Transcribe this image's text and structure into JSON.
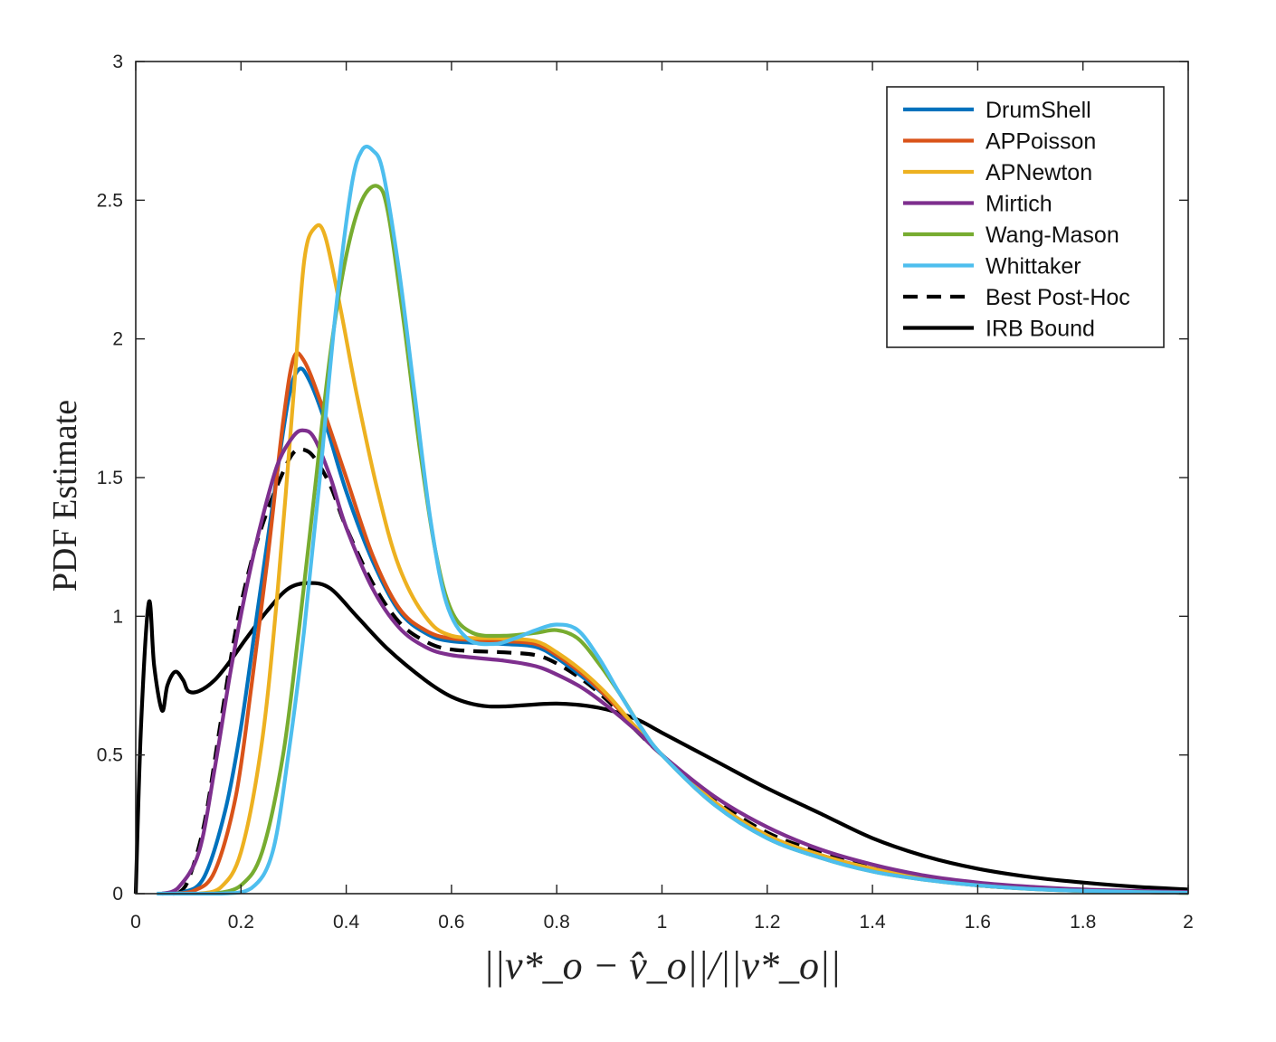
{
  "chart_data": {
    "type": "line",
    "title": "",
    "xlabel": "||v*_o − v̂_o||/||v*_o||",
    "ylabel": "PDF Estimate",
    "xlim": [
      0,
      2
    ],
    "ylim": [
      0,
      3
    ],
    "x_ticks": [
      0,
      0.2,
      0.4,
      0.6,
      0.8,
      1,
      1.2,
      1.4,
      1.6,
      1.8,
      2
    ],
    "x_tick_labels": [
      "0",
      "0.2",
      "0.4",
      "0.6",
      "0.8",
      "1",
      "1.2",
      "1.4",
      "1.6",
      "1.8",
      "2"
    ],
    "y_ticks": [
      0,
      0.5,
      1,
      1.5,
      2,
      2.5,
      3
    ],
    "y_tick_labels": [
      "0",
      "0.5",
      "1",
      "1.5",
      "2",
      "2.5",
      "3"
    ],
    "grid": false,
    "legend_position": "top-right",
    "series": [
      {
        "name": "DrumShell",
        "color": "#0072BD",
        "dash": "solid",
        "points": [
          [
            0.05,
            0
          ],
          [
            0.09,
            0.005
          ],
          [
            0.13,
            0.06
          ],
          [
            0.17,
            0.3
          ],
          [
            0.2,
            0.6
          ],
          [
            0.23,
            1.0
          ],
          [
            0.26,
            1.4
          ],
          [
            0.29,
            1.78
          ],
          [
            0.31,
            1.89
          ],
          [
            0.33,
            1.85
          ],
          [
            0.36,
            1.7
          ],
          [
            0.4,
            1.45
          ],
          [
            0.45,
            1.2
          ],
          [
            0.5,
            1.02
          ],
          [
            0.55,
            0.94
          ],
          [
            0.6,
            0.91
          ],
          [
            0.7,
            0.9
          ],
          [
            0.76,
            0.89
          ],
          [
            0.8,
            0.85
          ],
          [
            0.85,
            0.78
          ],
          [
            0.9,
            0.7
          ],
          [
            0.95,
            0.6
          ],
          [
            1.0,
            0.5
          ],
          [
            1.1,
            0.33
          ],
          [
            1.2,
            0.21
          ],
          [
            1.3,
            0.14
          ],
          [
            1.4,
            0.09
          ],
          [
            1.5,
            0.055
          ],
          [
            1.6,
            0.03
          ],
          [
            1.7,
            0.018
          ],
          [
            1.8,
            0.01
          ],
          [
            1.9,
            0.006
          ],
          [
            2.0,
            0.003
          ]
        ]
      },
      {
        "name": "APPoisson",
        "color": "#D95319",
        "dash": "solid",
        "points": [
          [
            0.07,
            0
          ],
          [
            0.11,
            0.01
          ],
          [
            0.15,
            0.08
          ],
          [
            0.19,
            0.35
          ],
          [
            0.22,
            0.75
          ],
          [
            0.25,
            1.2
          ],
          [
            0.28,
            1.7
          ],
          [
            0.3,
            1.93
          ],
          [
            0.32,
            1.92
          ],
          [
            0.35,
            1.78
          ],
          [
            0.4,
            1.5
          ],
          [
            0.45,
            1.22
          ],
          [
            0.5,
            1.03
          ],
          [
            0.55,
            0.95
          ],
          [
            0.6,
            0.92
          ],
          [
            0.7,
            0.91
          ],
          [
            0.76,
            0.9
          ],
          [
            0.8,
            0.86
          ],
          [
            0.85,
            0.79
          ],
          [
            0.9,
            0.7
          ],
          [
            0.95,
            0.6
          ],
          [
            1.0,
            0.5
          ],
          [
            1.1,
            0.33
          ],
          [
            1.2,
            0.21
          ],
          [
            1.3,
            0.14
          ],
          [
            1.4,
            0.09
          ],
          [
            1.5,
            0.055
          ],
          [
            1.6,
            0.03
          ],
          [
            1.7,
            0.018
          ],
          [
            1.8,
            0.01
          ],
          [
            1.9,
            0.006
          ],
          [
            2.0,
            0.003
          ]
        ]
      },
      {
        "name": "APNewton",
        "color": "#EDB120",
        "dash": "solid",
        "points": [
          [
            0.12,
            0
          ],
          [
            0.16,
            0.02
          ],
          [
            0.2,
            0.15
          ],
          [
            0.24,
            0.55
          ],
          [
            0.27,
            1.1
          ],
          [
            0.3,
            1.8
          ],
          [
            0.32,
            2.28
          ],
          [
            0.34,
            2.4
          ],
          [
            0.36,
            2.37
          ],
          [
            0.39,
            2.1
          ],
          [
            0.42,
            1.8
          ],
          [
            0.46,
            1.45
          ],
          [
            0.5,
            1.18
          ],
          [
            0.55,
            1.0
          ],
          [
            0.6,
            0.93
          ],
          [
            0.7,
            0.92
          ],
          [
            0.76,
            0.91
          ],
          [
            0.8,
            0.87
          ],
          [
            0.85,
            0.8
          ],
          [
            0.9,
            0.71
          ],
          [
            0.95,
            0.6
          ],
          [
            1.0,
            0.5
          ],
          [
            1.1,
            0.33
          ],
          [
            1.2,
            0.21
          ],
          [
            1.3,
            0.14
          ],
          [
            1.4,
            0.09
          ],
          [
            1.5,
            0.055
          ],
          [
            1.6,
            0.03
          ],
          [
            1.7,
            0.018
          ],
          [
            1.8,
            0.01
          ],
          [
            1.9,
            0.006
          ],
          [
            2.0,
            0.003
          ]
        ]
      },
      {
        "name": "Mirtich",
        "color": "#7E2F8E",
        "dash": "solid",
        "points": [
          [
            0.05,
            0
          ],
          [
            0.08,
            0.02
          ],
          [
            0.12,
            0.15
          ],
          [
            0.15,
            0.45
          ],
          [
            0.18,
            0.8
          ],
          [
            0.21,
            1.1
          ],
          [
            0.24,
            1.35
          ],
          [
            0.27,
            1.55
          ],
          [
            0.3,
            1.65
          ],
          [
            0.32,
            1.67
          ],
          [
            0.34,
            1.64
          ],
          [
            0.37,
            1.5
          ],
          [
            0.4,
            1.32
          ],
          [
            0.45,
            1.1
          ],
          [
            0.5,
            0.96
          ],
          [
            0.55,
            0.89
          ],
          [
            0.6,
            0.86
          ],
          [
            0.7,
            0.84
          ],
          [
            0.76,
            0.82
          ],
          [
            0.8,
            0.79
          ],
          [
            0.85,
            0.74
          ],
          [
            0.9,
            0.67
          ],
          [
            0.95,
            0.59
          ],
          [
            1.0,
            0.5
          ],
          [
            1.1,
            0.35
          ],
          [
            1.2,
            0.24
          ],
          [
            1.3,
            0.16
          ],
          [
            1.4,
            0.105
          ],
          [
            1.5,
            0.065
          ],
          [
            1.6,
            0.04
          ],
          [
            1.7,
            0.025
          ],
          [
            1.8,
            0.015
          ],
          [
            1.9,
            0.01
          ],
          [
            2.0,
            0.006
          ]
        ]
      },
      {
        "name": "Wang-Mason",
        "color": "#77AC30",
        "dash": "solid",
        "points": [
          [
            0.15,
            0
          ],
          [
            0.2,
            0.03
          ],
          [
            0.24,
            0.15
          ],
          [
            0.28,
            0.5
          ],
          [
            0.31,
            0.95
          ],
          [
            0.34,
            1.45
          ],
          [
            0.37,
            1.95
          ],
          [
            0.4,
            2.3
          ],
          [
            0.43,
            2.5
          ],
          [
            0.46,
            2.55
          ],
          [
            0.48,
            2.45
          ],
          [
            0.51,
            2.05
          ],
          [
            0.54,
            1.6
          ],
          [
            0.57,
            1.23
          ],
          [
            0.6,
            1.02
          ],
          [
            0.64,
            0.94
          ],
          [
            0.7,
            0.93
          ],
          [
            0.76,
            0.94
          ],
          [
            0.8,
            0.95
          ],
          [
            0.84,
            0.92
          ],
          [
            0.88,
            0.83
          ],
          [
            0.92,
            0.72
          ],
          [
            0.96,
            0.6
          ],
          [
            1.0,
            0.5
          ],
          [
            1.1,
            0.32
          ],
          [
            1.2,
            0.2
          ],
          [
            1.3,
            0.13
          ],
          [
            1.4,
            0.08
          ],
          [
            1.5,
            0.05
          ],
          [
            1.6,
            0.03
          ],
          [
            1.7,
            0.017
          ],
          [
            1.8,
            0.01
          ],
          [
            1.9,
            0.006
          ],
          [
            2.0,
            0.003
          ]
        ]
      },
      {
        "name": "Whittaker",
        "color": "#4DBEEE",
        "dash": "solid",
        "points": [
          [
            0.04,
            0
          ],
          [
            0.16,
            0
          ],
          [
            0.22,
            0.02
          ],
          [
            0.26,
            0.15
          ],
          [
            0.29,
            0.5
          ],
          [
            0.32,
            0.95
          ],
          [
            0.35,
            1.5
          ],
          [
            0.38,
            2.1
          ],
          [
            0.41,
            2.55
          ],
          [
            0.43,
            2.68
          ],
          [
            0.45,
            2.68
          ],
          [
            0.47,
            2.6
          ],
          [
            0.5,
            2.25
          ],
          [
            0.53,
            1.8
          ],
          [
            0.56,
            1.35
          ],
          [
            0.59,
            1.05
          ],
          [
            0.63,
            0.92
          ],
          [
            0.68,
            0.9
          ],
          [
            0.72,
            0.92
          ],
          [
            0.76,
            0.95
          ],
          [
            0.8,
            0.97
          ],
          [
            0.84,
            0.95
          ],
          [
            0.88,
            0.85
          ],
          [
            0.92,
            0.72
          ],
          [
            0.96,
            0.6
          ],
          [
            1.0,
            0.5
          ],
          [
            1.1,
            0.32
          ],
          [
            1.2,
            0.2
          ],
          [
            1.3,
            0.13
          ],
          [
            1.4,
            0.08
          ],
          [
            1.5,
            0.05
          ],
          [
            1.6,
            0.03
          ],
          [
            1.7,
            0.017
          ],
          [
            1.8,
            0.01
          ],
          [
            1.9,
            0.006
          ],
          [
            2.0,
            0.003
          ]
        ]
      },
      {
        "name": "Best Post-Hoc",
        "color": "#000000",
        "dash": "dashed",
        "points": [
          [
            0.08,
            0
          ],
          [
            0.1,
            0.05
          ],
          [
            0.13,
            0.25
          ],
          [
            0.16,
            0.6
          ],
          [
            0.19,
            0.95
          ],
          [
            0.22,
            1.2
          ],
          [
            0.25,
            1.38
          ],
          [
            0.28,
            1.52
          ],
          [
            0.3,
            1.59
          ],
          [
            0.32,
            1.6
          ],
          [
            0.34,
            1.57
          ],
          [
            0.37,
            1.47
          ],
          [
            0.4,
            1.32
          ],
          [
            0.45,
            1.12
          ],
          [
            0.5,
            0.98
          ],
          [
            0.55,
            0.91
          ],
          [
            0.6,
            0.88
          ],
          [
            0.7,
            0.87
          ],
          [
            0.76,
            0.86
          ],
          [
            0.8,
            0.83
          ],
          [
            0.85,
            0.77
          ],
          [
            0.9,
            0.69
          ],
          [
            0.95,
            0.59
          ],
          [
            1.0,
            0.5
          ],
          [
            1.1,
            0.34
          ],
          [
            1.2,
            0.22
          ],
          [
            1.3,
            0.15
          ],
          [
            1.4,
            0.095
          ],
          [
            1.5,
            0.06
          ],
          [
            1.6,
            0.035
          ],
          [
            1.7,
            0.02
          ],
          [
            1.8,
            0.012
          ],
          [
            1.9,
            0.008
          ],
          [
            2.0,
            0.005
          ]
        ]
      },
      {
        "name": "IRB Bound",
        "color": "#000000",
        "dash": "solid",
        "points": [
          [
            0.0,
            0
          ],
          [
            0.01,
            0.6
          ],
          [
            0.025,
            1.05
          ],
          [
            0.035,
            0.82
          ],
          [
            0.05,
            0.66
          ],
          [
            0.06,
            0.75
          ],
          [
            0.075,
            0.8
          ],
          [
            0.09,
            0.77
          ],
          [
            0.1,
            0.73
          ],
          [
            0.12,
            0.73
          ],
          [
            0.15,
            0.77
          ],
          [
            0.18,
            0.84
          ],
          [
            0.21,
            0.92
          ],
          [
            0.25,
            1.02
          ],
          [
            0.29,
            1.1
          ],
          [
            0.33,
            1.12
          ],
          [
            0.37,
            1.1
          ],
          [
            0.42,
            1.0
          ],
          [
            0.48,
            0.88
          ],
          [
            0.55,
            0.77
          ],
          [
            0.6,
            0.71
          ],
          [
            0.65,
            0.68
          ],
          [
            0.7,
            0.675
          ],
          [
            0.8,
            0.685
          ],
          [
            0.88,
            0.67
          ],
          [
            0.95,
            0.63
          ],
          [
            1.0,
            0.58
          ],
          [
            1.1,
            0.48
          ],
          [
            1.2,
            0.38
          ],
          [
            1.3,
            0.29
          ],
          [
            1.4,
            0.2
          ],
          [
            1.5,
            0.135
          ],
          [
            1.6,
            0.09
          ],
          [
            1.7,
            0.06
          ],
          [
            1.8,
            0.04
          ],
          [
            1.9,
            0.025
          ],
          [
            2.0,
            0.015
          ]
        ]
      }
    ]
  }
}
